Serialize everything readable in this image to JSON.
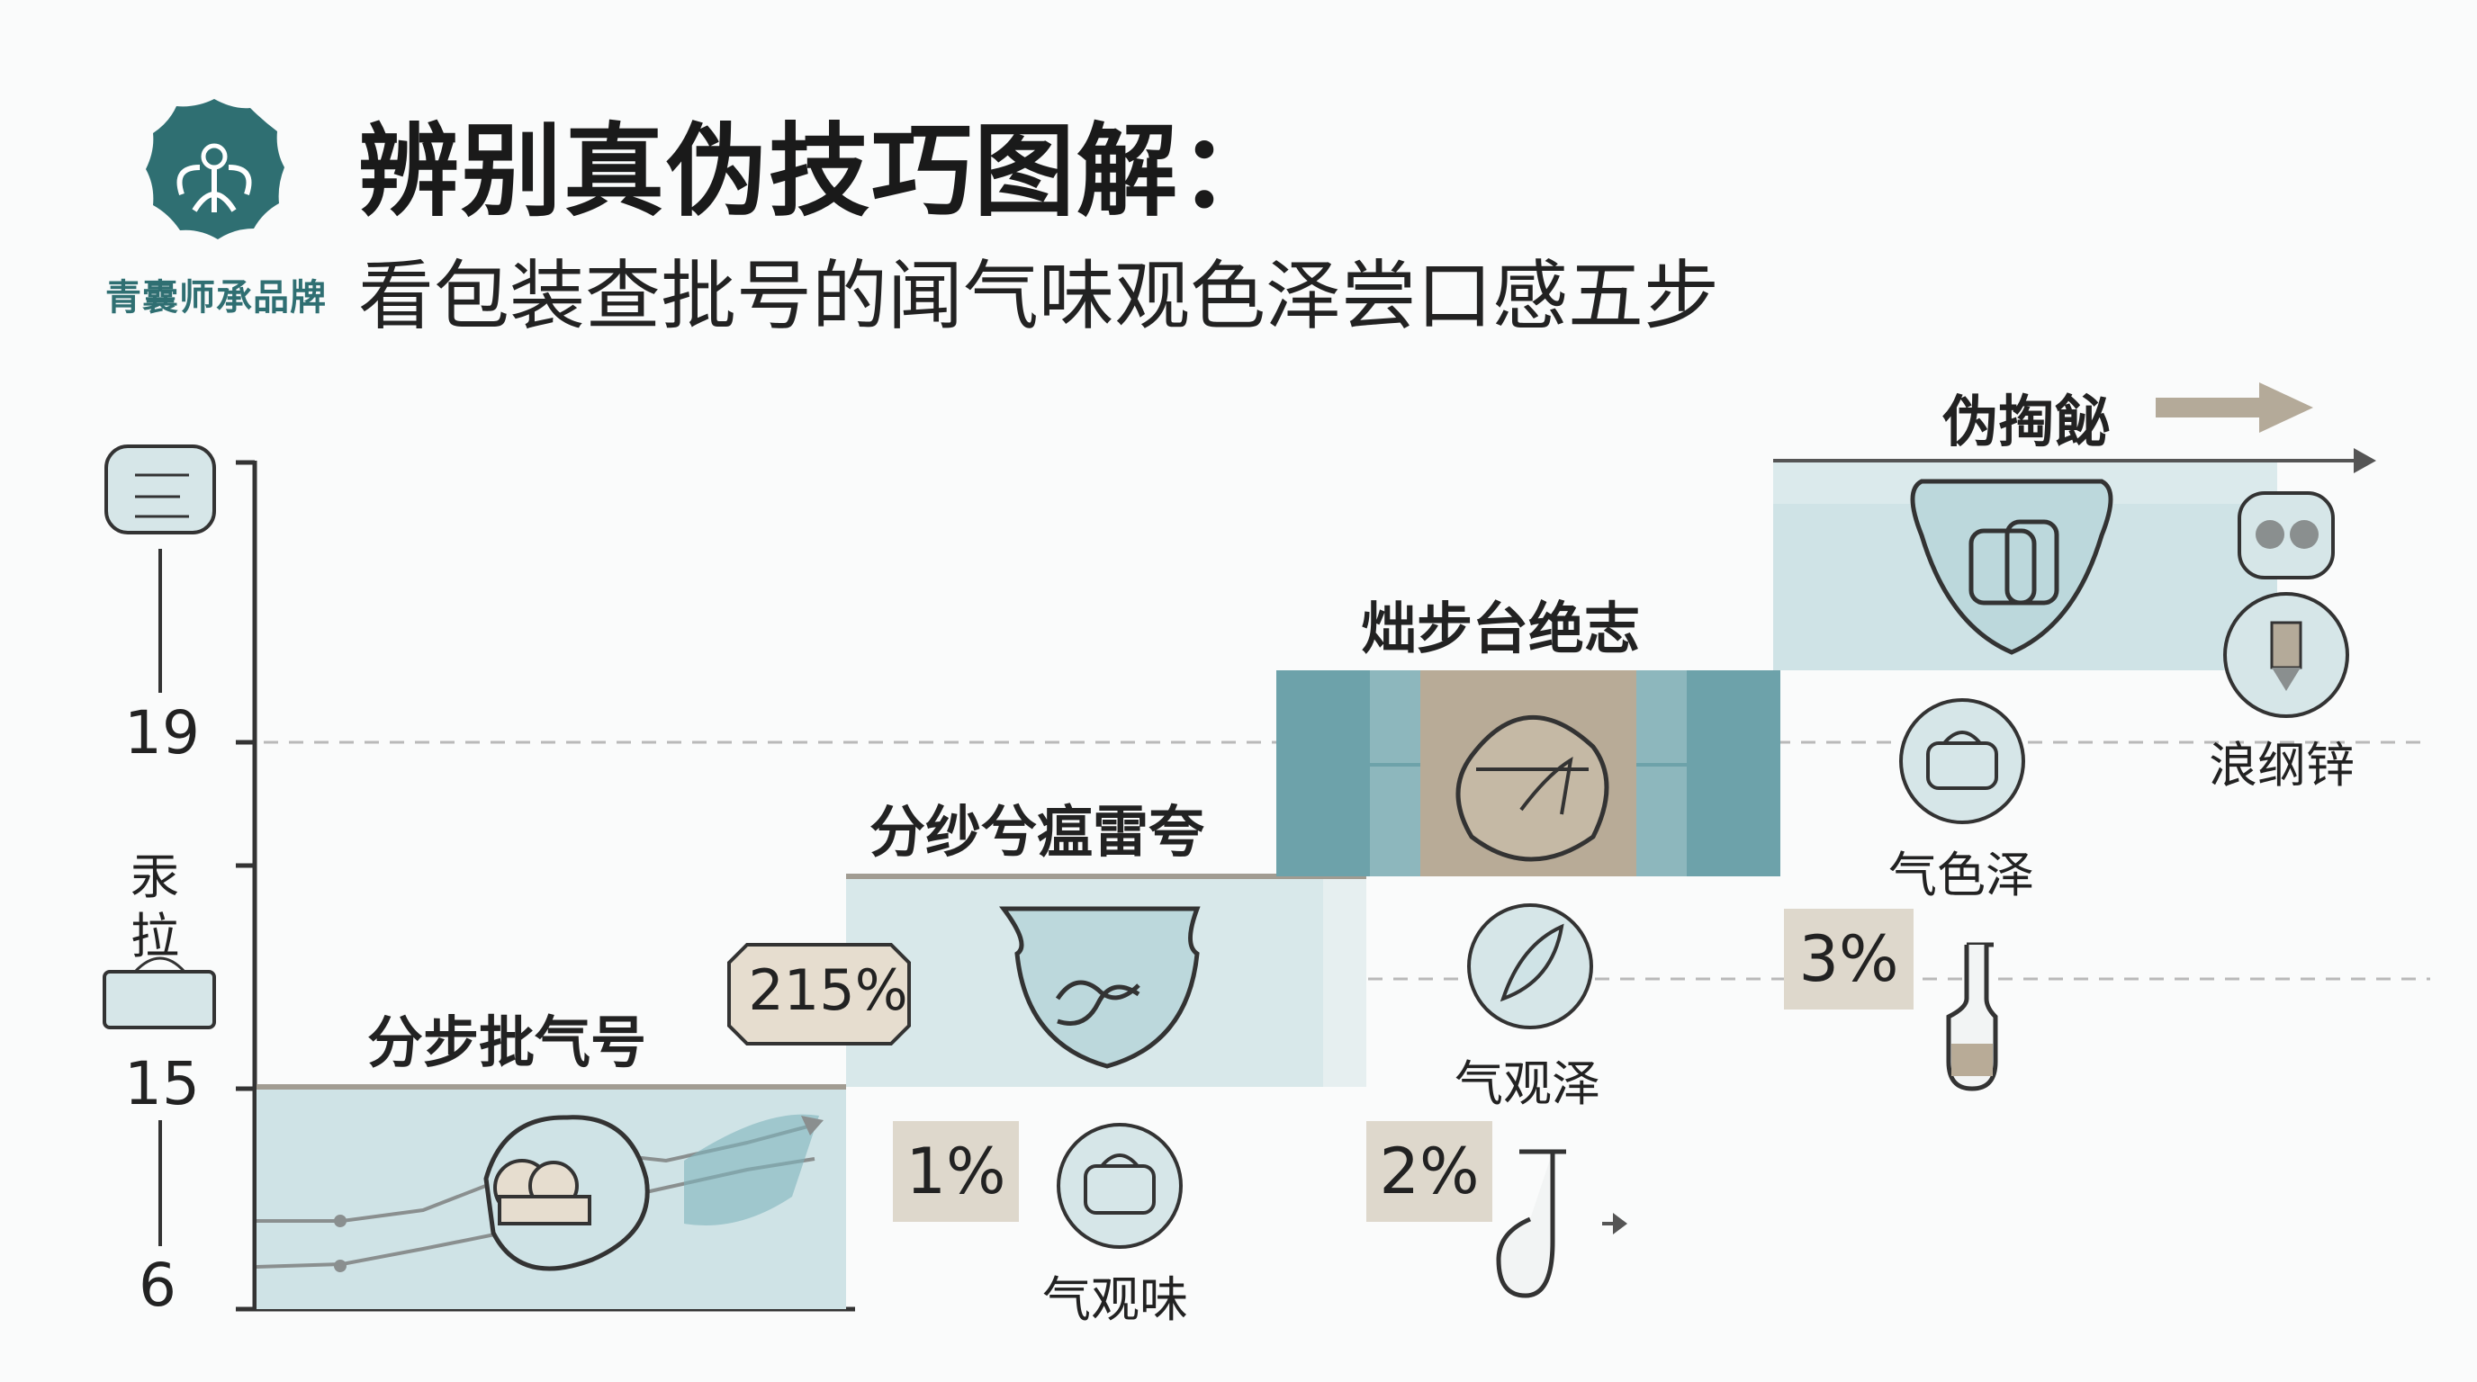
{
  "brand": {
    "name": "青囊师承品牌"
  },
  "header": {
    "title": "辨别真伪技巧图解：",
    "subtitle": "看包装查批号的闻气味观色泽尝口感五步"
  },
  "axis": {
    "ticks": [
      "19",
      "15",
      "6"
    ],
    "side_label_1": "汞",
    "side_label_2": "拉"
  },
  "steps": [
    {
      "label": "分步批气号"
    },
    {
      "label": "分纱兮瘟雷夸"
    },
    {
      "label": "炪步台绝志"
    },
    {
      "label": "伪掏飶"
    }
  ],
  "badges": [
    "215%",
    "1%",
    "2%",
    "3%"
  ],
  "icon_labels": [
    "气观味",
    "气观泽",
    "气色泽",
    "浪纲锌"
  ],
  "colors": {
    "teal_light": "#cfe3e6",
    "teal_mid": "#8db7bd",
    "teal_dark": "#6da2aa",
    "taupe": "#ded8cc",
    "accent": "#2f6f72"
  }
}
